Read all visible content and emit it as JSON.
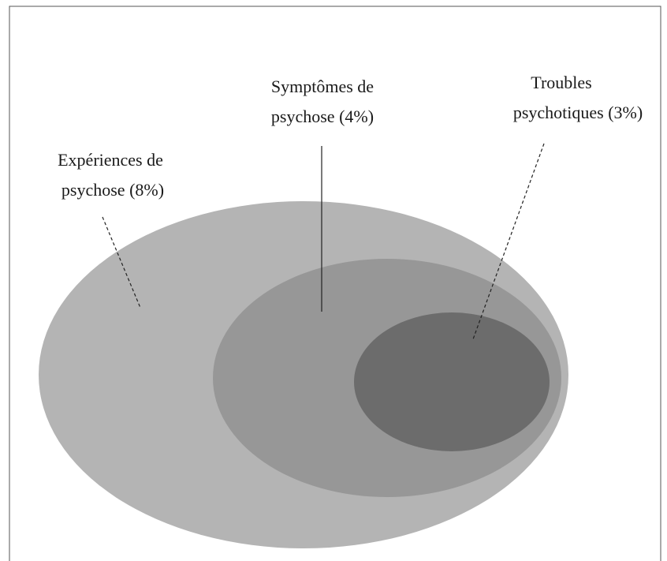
{
  "nodes": [
    {
      "label": [
        "Expériences de",
        "psychose (8%)"
      ]
    },
    {
      "label": [
        "Symptômes de",
        "psychose (4%)"
      ]
    },
    {
      "label": [
        "Troubles",
        "psychotiques (3%)"
      ]
    }
  ]
}
